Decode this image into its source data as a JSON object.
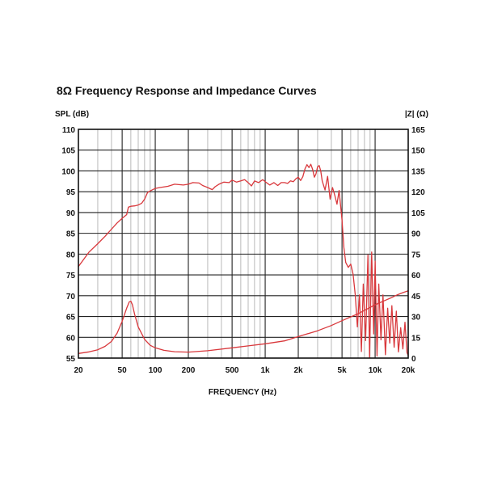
{
  "chart_data": {
    "type": "line",
    "title": "8Ω Frequency Response and Impedance Curves",
    "xlabel": "FREQUENCY (Hz)",
    "ylabel_left": "SPL (dB)",
    "ylabel_right": "|Z| (Ω)",
    "x_scale": "log",
    "xlim": [
      20,
      20000
    ],
    "ylim_left": [
      55,
      110
    ],
    "ylim_right": [
      0,
      165
    ],
    "grid": true,
    "x_ticks": [
      20,
      50,
      100,
      200,
      500,
      1000,
      2000,
      5000,
      10000,
      20000
    ],
    "x_tick_labels": [
      "20",
      "50",
      "100",
      "200",
      "500",
      "1k",
      "2k",
      "5k",
      "10k",
      "20k"
    ],
    "y_left_ticks": [
      110,
      105,
      100,
      95,
      90,
      85,
      80,
      75,
      70,
      65,
      60,
      55
    ],
    "y_right_ticks": [
      165,
      150,
      135,
      120,
      105,
      90,
      75,
      60,
      45,
      30,
      15,
      0
    ],
    "series": [
      {
        "axis": "left",
        "color": "#d9383c",
        "points": [
          [
            20,
            77
          ],
          [
            22,
            78.5
          ],
          [
            25,
            80.5
          ],
          [
            30,
            82.5
          ],
          [
            35,
            84.3
          ],
          [
            40,
            86
          ],
          [
            45,
            87.5
          ],
          [
            50,
            88.6
          ],
          [
            55,
            89.5
          ],
          [
            57,
            91.3
          ],
          [
            60,
            91.5
          ],
          [
            65,
            91.6
          ],
          [
            70,
            91.8
          ],
          [
            75,
            92.2
          ],
          [
            80,
            93.2
          ],
          [
            85,
            94.8
          ],
          [
            90,
            95.2
          ],
          [
            100,
            95.8
          ],
          [
            110,
            96
          ],
          [
            130,
            96.3
          ],
          [
            150,
            96.8
          ],
          [
            180,
            96.6
          ],
          [
            200,
            96.8
          ],
          [
            220,
            97.2
          ],
          [
            250,
            97.1
          ],
          [
            270,
            96.5
          ],
          [
            300,
            96
          ],
          [
            330,
            95.5
          ],
          [
            350,
            96.2
          ],
          [
            380,
            96.8
          ],
          [
            420,
            97.3
          ],
          [
            470,
            97.2
          ],
          [
            500,
            97.8
          ],
          [
            550,
            97.3
          ],
          [
            600,
            97.6
          ],
          [
            650,
            97.9
          ],
          [
            700,
            97.2
          ],
          [
            750,
            96.4
          ],
          [
            800,
            97.6
          ],
          [
            870,
            97.2
          ],
          [
            950,
            97.9
          ],
          [
            1000,
            97.4
          ],
          [
            1100,
            96.6
          ],
          [
            1200,
            97.2
          ],
          [
            1300,
            96.5
          ],
          [
            1400,
            97.2
          ],
          [
            1500,
            97.2
          ],
          [
            1600,
            97
          ],
          [
            1700,
            97.6
          ],
          [
            1800,
            97.4
          ],
          [
            1900,
            98.1
          ],
          [
            2000,
            98.5
          ],
          [
            2100,
            97.7
          ],
          [
            2200,
            98.6
          ],
          [
            2300,
            100.5
          ],
          [
            2400,
            101.5
          ],
          [
            2500,
            100.8
          ],
          [
            2600,
            101.6
          ],
          [
            2700,
            100.4
          ],
          [
            2800,
            98.5
          ],
          [
            2900,
            99.3
          ],
          [
            3000,
            101
          ],
          [
            3100,
            101.3
          ],
          [
            3200,
            100
          ],
          [
            3300,
            97.6
          ],
          [
            3500,
            95.4
          ],
          [
            3700,
            98.7
          ],
          [
            3900,
            93.2
          ],
          [
            4100,
            96
          ],
          [
            4300,
            94.1
          ],
          [
            4500,
            92
          ],
          [
            4700,
            95.3
          ],
          [
            5000,
            88.2
          ],
          [
            5200,
            81.6
          ],
          [
            5400,
            78
          ],
          [
            5700,
            76.8
          ],
          [
            6000,
            77.6
          ],
          [
            6300,
            75.2
          ],
          [
            6600,
            70.2
          ],
          [
            6900,
            62.5
          ],
          [
            7200,
            70.2
          ],
          [
            7500,
            56.6
          ],
          [
            7800,
            72.8
          ],
          [
            8200,
            59.2
          ],
          [
            8600,
            79.8
          ],
          [
            8900,
            55.2
          ],
          [
            9300,
            80.5
          ],
          [
            9700,
            60.8
          ],
          [
            10000,
            78.3
          ],
          [
            10400,
            55.5
          ],
          [
            10800,
            72.8
          ],
          [
            11300,
            59.4
          ],
          [
            11800,
            70.2
          ],
          [
            12400,
            55.8
          ],
          [
            13000,
            67
          ],
          [
            13600,
            58.6
          ],
          [
            14200,
            67.6
          ],
          [
            14900,
            57.6
          ],
          [
            15600,
            66.3
          ],
          [
            16300,
            56.5
          ],
          [
            17100,
            62.3
          ],
          [
            17900,
            57.2
          ],
          [
            18700,
            63.6
          ],
          [
            19500,
            56.3
          ],
          [
            20000,
            55.6
          ]
        ]
      },
      {
        "axis": "right",
        "color": "#d9383c",
        "points": [
          [
            20,
            3.3
          ],
          [
            25,
            4.5
          ],
          [
            30,
            6
          ],
          [
            35,
            8.5
          ],
          [
            40,
            12
          ],
          [
            45,
            18
          ],
          [
            50,
            26.5
          ],
          [
            55,
            36
          ],
          [
            58,
            40.5
          ],
          [
            60,
            41
          ],
          [
            62,
            38.5
          ],
          [
            65,
            31.5
          ],
          [
            70,
            22.5
          ],
          [
            80,
            13.5
          ],
          [
            90,
            9.2
          ],
          [
            100,
            7.4
          ],
          [
            120,
            5.6
          ],
          [
            150,
            4.6
          ],
          [
            200,
            4.3
          ],
          [
            300,
            5.3
          ],
          [
            500,
            7.4
          ],
          [
            700,
            8.8
          ],
          [
            1000,
            10.3
          ],
          [
            1500,
            12.4
          ],
          [
            2000,
            15.5
          ],
          [
            3000,
            19.7
          ],
          [
            4000,
            23.5
          ],
          [
            5000,
            27
          ],
          [
            7000,
            32
          ],
          [
            10000,
            38.5
          ],
          [
            12000,
            41.2
          ],
          [
            14000,
            43.5
          ],
          [
            16000,
            45.7
          ],
          [
            18000,
            47.3
          ],
          [
            20000,
            48.5
          ]
        ]
      }
    ]
  }
}
